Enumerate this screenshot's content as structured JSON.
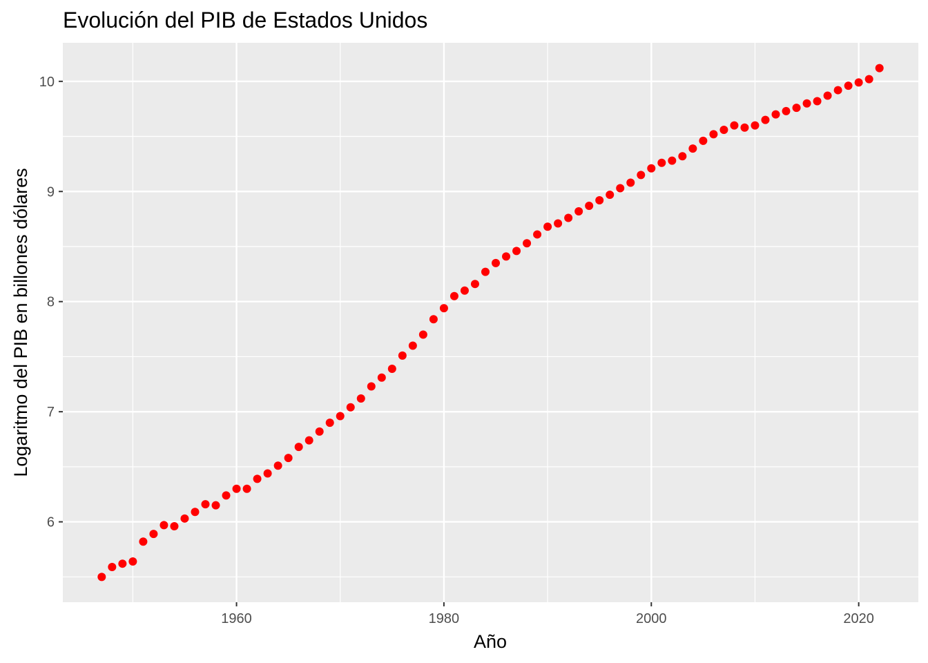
{
  "chart_data": {
    "type": "scatter",
    "title": "Evolución del PIB de Estados Unidos",
    "xlabel": "Año",
    "ylabel": "Logaritmo del PIB en billones dólares",
    "xlim": [
      1943.25,
      2025.75
    ],
    "ylim": [
      5.27,
      10.35
    ],
    "x_ticks": [
      1960,
      1980,
      2000,
      2020
    ],
    "x_minor_ticks": [
      1950,
      1970,
      1990,
      2010
    ],
    "y_ticks": [
      6,
      7,
      8,
      9,
      10
    ],
    "y_minor_ticks": [
      5.5,
      6.5,
      7.5,
      8.5,
      9.5
    ],
    "grid": true,
    "legend": "none",
    "colors": {
      "points": "#ff0000",
      "panel": "#ebebeb",
      "grid": "#ffffff",
      "tick": "#4d4d4d"
    },
    "series": [
      {
        "x": [
          1947,
          1948,
          1949,
          1950,
          1951,
          1952,
          1953,
          1954,
          1955,
          1956,
          1957,
          1958,
          1959,
          1960,
          1961,
          1962,
          1963,
          1964,
          1965,
          1966,
          1967,
          1968,
          1969,
          1970,
          1971,
          1972,
          1973,
          1974,
          1975,
          1976,
          1977,
          1978,
          1979,
          1980,
          1981,
          1982,
          1983,
          1984,
          1985,
          1986,
          1987,
          1988,
          1989,
          1990,
          1991,
          1992,
          1993,
          1994,
          1995,
          1996,
          1997,
          1998,
          1999,
          2000,
          2001,
          2002,
          2003,
          2004,
          2005,
          2006,
          2007,
          2008,
          2009,
          2010,
          2011,
          2012,
          2013,
          2014,
          2015,
          2016,
          2017,
          2018,
          2019,
          2020,
          2021,
          2022
        ],
        "y": [
          5.5,
          5.59,
          5.62,
          5.64,
          5.82,
          5.89,
          5.97,
          5.96,
          6.03,
          6.09,
          6.16,
          6.15,
          6.24,
          6.3,
          6.3,
          6.39,
          6.44,
          6.51,
          6.58,
          6.68,
          6.74,
          6.82,
          6.9,
          6.96,
          7.04,
          7.12,
          7.23,
          7.31,
          7.39,
          7.51,
          7.6,
          7.7,
          7.84,
          7.94,
          8.05,
          8.1,
          8.16,
          8.27,
          8.35,
          8.41,
          8.46,
          8.53,
          8.61,
          8.68,
          8.71,
          8.76,
          8.82,
          8.87,
          8.92,
          8.97,
          9.03,
          9.08,
          9.15,
          9.21,
          9.26,
          9.28,
          9.32,
          9.39,
          9.46,
          9.52,
          9.56,
          9.6,
          9.58,
          9.6,
          9.65,
          9.7,
          9.73,
          9.76,
          9.8,
          9.82,
          9.87,
          9.92,
          9.96,
          9.99,
          10.02,
          10.12
        ]
      }
    ]
  }
}
